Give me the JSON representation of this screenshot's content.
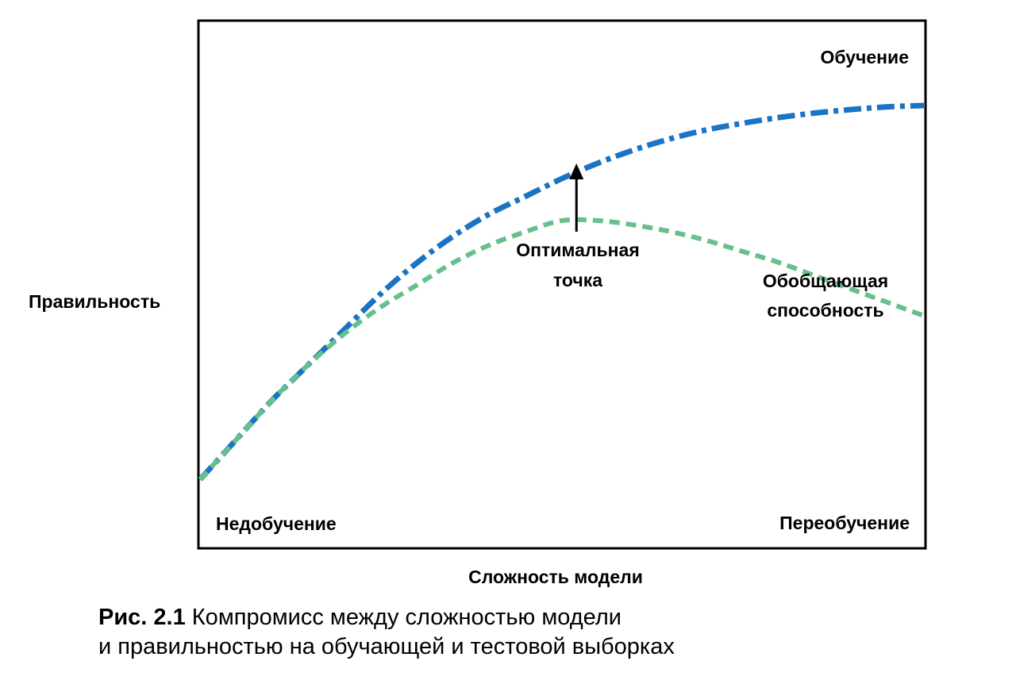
{
  "chart_data": {
    "type": "line",
    "xlabel": "Сложность модели",
    "ylabel": "Правильность",
    "xlim": [
      0,
      1
    ],
    "ylim": [
      0,
      1
    ],
    "grid": false,
    "series": [
      {
        "name": "Обучение",
        "style": "dash-dot",
        "color": "#1a73c4",
        "x": [
          0,
          0.05,
          0.1,
          0.15,
          0.2,
          0.25,
          0.3,
          0.35,
          0.4,
          0.45,
          0.5,
          0.55,
          0.6,
          0.65,
          0.7,
          0.75,
          0.8,
          0.85,
          0.9,
          0.95,
          1.0
        ],
        "values": [
          0.15,
          0.24,
          0.33,
          0.41,
          0.49,
          0.57,
          0.64,
          0.7,
          0.75,
          0.79,
          0.83,
          0.865,
          0.895,
          0.92,
          0.94,
          0.955,
          0.968,
          0.978,
          0.986,
          0.992,
          0.995
        ]
      },
      {
        "name": "Обобщающая способность",
        "style": "dashed",
        "color": "#66c08c",
        "x": [
          0,
          0.05,
          0.1,
          0.15,
          0.2,
          0.25,
          0.3,
          0.35,
          0.4,
          0.45,
          0.5,
          0.55,
          0.6,
          0.65,
          0.7,
          0.75,
          0.8,
          0.85,
          0.9,
          0.95,
          1.0
        ],
        "values": [
          0.15,
          0.24,
          0.33,
          0.41,
          0.48,
          0.54,
          0.59,
          0.64,
          0.68,
          0.71,
          0.735,
          0.735,
          0.725,
          0.71,
          0.69,
          0.665,
          0.64,
          0.61,
          0.58,
          0.55,
          0.52
        ]
      }
    ],
    "annotations": {
      "optimal_line1": "Оптимальная",
      "optimal_line2": "точка",
      "underfitting": "Недобучение",
      "overfitting": "Переобучение",
      "generalization_line1": "Обобщающая",
      "generalization_line2": "способность",
      "training": "Обучение"
    },
    "optimal_x": 0.52
  },
  "caption": {
    "label": "Рис. 2.1",
    "line1": " Компромисс между сложностью модели",
    "line2": "и правильностью на обучающей и тестовой выборках"
  }
}
